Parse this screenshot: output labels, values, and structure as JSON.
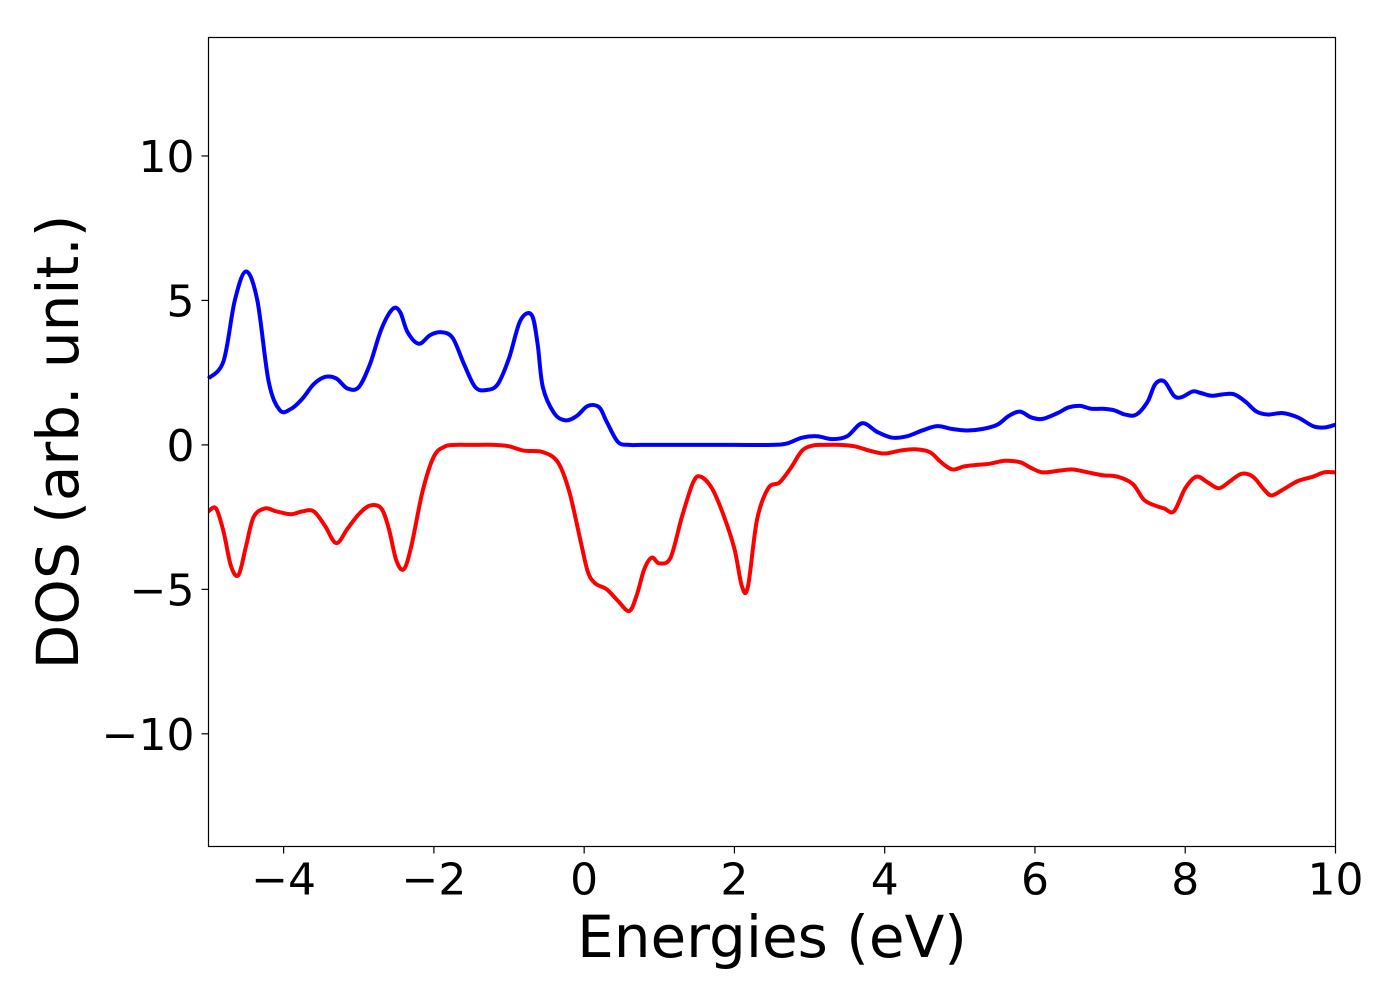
{
  "chart_data": {
    "type": "line",
    "xlabel": "Energies (eV)",
    "ylabel": "DOS (arb. unit.)",
    "xlim": [
      -5,
      10
    ],
    "ylim": [
      -13.9,
      14.1
    ],
    "xticks": [
      -4,
      -2,
      0,
      2,
      4,
      6,
      8,
      10
    ],
    "yticks": [
      -10,
      -5,
      0,
      5,
      10
    ],
    "xtick_labels": [
      "−4",
      "−2",
      "0",
      "2",
      "4",
      "6",
      "8",
      "10"
    ],
    "ytick_labels": [
      "−10",
      "−5",
      "0",
      "5",
      "10"
    ],
    "grid": false,
    "series": [
      {
        "color": "#0000ff",
        "x": [
          -5.0,
          -4.8,
          -4.65,
          -4.5,
          -4.35,
          -4.2,
          -4.05,
          -3.9,
          -3.75,
          -3.6,
          -3.45,
          -3.3,
          -3.15,
          -3.0,
          -2.85,
          -2.7,
          -2.55,
          -2.45,
          -2.35,
          -2.2,
          -2.05,
          -1.9,
          -1.75,
          -1.6,
          -1.45,
          -1.3,
          -1.15,
          -1.0,
          -0.85,
          -0.7,
          -0.62,
          -0.55,
          -0.4,
          -0.25,
          -0.1,
          0.05,
          0.2,
          0.3,
          0.45,
          0.6,
          0.75,
          1.0,
          1.5,
          2.0,
          2.5,
          2.7,
          2.9,
          3.1,
          3.3,
          3.5,
          3.7,
          3.9,
          4.1,
          4.3,
          4.5,
          4.7,
          4.9,
          5.1,
          5.3,
          5.5,
          5.65,
          5.8,
          5.95,
          6.1,
          6.3,
          6.45,
          6.6,
          6.75,
          6.9,
          7.05,
          7.2,
          7.35,
          7.5,
          7.6,
          7.72,
          7.85,
          7.95,
          8.1,
          8.2,
          8.35,
          8.5,
          8.65,
          8.8,
          8.95,
          9.1,
          9.3,
          9.5,
          9.7,
          9.85,
          10.0
        ],
        "y": [
          2.3,
          2.9,
          5.0,
          6.0,
          5.0,
          2.2,
          1.2,
          1.25,
          1.6,
          2.1,
          2.35,
          2.3,
          1.95,
          2.0,
          2.8,
          4.0,
          4.7,
          4.6,
          3.9,
          3.5,
          3.8,
          3.9,
          3.7,
          2.8,
          2.0,
          1.9,
          2.1,
          3.0,
          4.3,
          4.5,
          3.5,
          2.0,
          1.1,
          0.85,
          1.0,
          1.35,
          1.3,
          0.8,
          0.1,
          0.0,
          0.0,
          0.0,
          0.0,
          0.0,
          0.0,
          0.05,
          0.25,
          0.3,
          0.2,
          0.3,
          0.75,
          0.45,
          0.25,
          0.3,
          0.5,
          0.65,
          0.55,
          0.5,
          0.55,
          0.7,
          1.0,
          1.15,
          0.95,
          0.9,
          1.1,
          1.3,
          1.35,
          1.25,
          1.25,
          1.2,
          1.05,
          1.05,
          1.5,
          2.1,
          2.2,
          1.7,
          1.65,
          1.85,
          1.8,
          1.7,
          1.75,
          1.75,
          1.5,
          1.15,
          1.05,
          1.1,
          0.95,
          0.65,
          0.6,
          0.7
        ]
      },
      {
        "color": "#ff0000",
        "x": [
          -5.0,
          -4.9,
          -4.8,
          -4.7,
          -4.6,
          -4.5,
          -4.4,
          -4.25,
          -4.1,
          -3.9,
          -3.75,
          -3.6,
          -3.45,
          -3.3,
          -3.15,
          -3.0,
          -2.85,
          -2.7,
          -2.6,
          -2.5,
          -2.4,
          -2.3,
          -2.15,
          -2.0,
          -1.85,
          -1.7,
          -1.5,
          -1.2,
          -1.0,
          -0.8,
          -0.55,
          -0.35,
          -0.2,
          -0.05,
          0.05,
          0.15,
          0.3,
          0.45,
          0.6,
          0.7,
          0.8,
          0.9,
          1.0,
          1.15,
          1.3,
          1.45,
          1.55,
          1.7,
          1.85,
          2.0,
          2.1,
          2.18,
          2.3,
          2.45,
          2.6,
          2.75,
          2.9,
          3.05,
          3.2,
          3.4,
          3.6,
          3.8,
          4.0,
          4.2,
          4.4,
          4.6,
          4.75,
          4.9,
          5.05,
          5.2,
          5.4,
          5.6,
          5.8,
          5.95,
          6.1,
          6.3,
          6.5,
          6.7,
          6.9,
          7.1,
          7.3,
          7.45,
          7.6,
          7.72,
          7.85,
          8.0,
          8.15,
          8.3,
          8.45,
          8.6,
          8.75,
          8.9,
          9.05,
          9.15,
          9.3,
          9.5,
          9.7,
          9.85,
          10.0
        ],
        "y": [
          -2.3,
          -2.2,
          -3.0,
          -4.2,
          -4.5,
          -3.5,
          -2.5,
          -2.2,
          -2.3,
          -2.4,
          -2.3,
          -2.3,
          -2.8,
          -3.4,
          -2.9,
          -2.4,
          -2.1,
          -2.2,
          -2.9,
          -4.0,
          -4.3,
          -3.5,
          -1.6,
          -0.4,
          -0.05,
          0.0,
          0.0,
          0.0,
          -0.05,
          -0.2,
          -0.25,
          -0.6,
          -1.6,
          -3.3,
          -4.4,
          -4.8,
          -5.0,
          -5.4,
          -5.75,
          -5.2,
          -4.3,
          -3.9,
          -4.1,
          -3.9,
          -2.5,
          -1.3,
          -1.1,
          -1.5,
          -2.4,
          -3.6,
          -4.9,
          -4.9,
          -2.6,
          -1.5,
          -1.3,
          -0.8,
          -0.2,
          -0.02,
          0.0,
          0.0,
          -0.05,
          -0.2,
          -0.3,
          -0.2,
          -0.15,
          -0.25,
          -0.6,
          -0.85,
          -0.75,
          -0.7,
          -0.65,
          -0.55,
          -0.6,
          -0.8,
          -0.95,
          -0.9,
          -0.85,
          -0.95,
          -1.05,
          -1.1,
          -1.35,
          -1.9,
          -2.1,
          -2.2,
          -2.3,
          -1.5,
          -1.1,
          -1.3,
          -1.5,
          -1.25,
          -1.0,
          -1.1,
          -1.55,
          -1.75,
          -1.55,
          -1.25,
          -1.1,
          -0.95,
          -0.95
        ]
      }
    ]
  }
}
